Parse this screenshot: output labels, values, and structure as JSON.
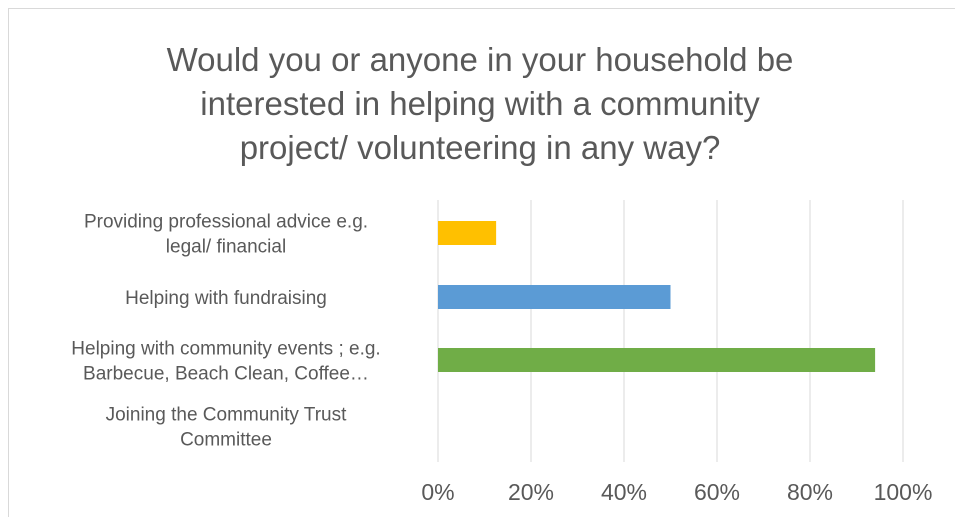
{
  "chart_data": {
    "type": "bar",
    "orientation": "horizontal",
    "title": "Would you or anyone in your household be interested in helping with a community project/ volunteering in any way?",
    "title_lines": [
      "Would you or anyone in your household be",
      "interested in helping with a community",
      "project/ volunteering in any way?"
    ],
    "categories": [
      {
        "lines": [
          "Providing professional advice e.g.",
          "legal/ financial"
        ]
      },
      {
        "lines": [
          "Helping with fundraising"
        ]
      },
      {
        "lines": [
          "Helping with community events ; e.g.",
          "Barbecue, Beach Clean, Coffee…"
        ]
      },
      {
        "lines": [
          "Joining the Community Trust",
          "Committee"
        ]
      }
    ],
    "values": [
      12.5,
      50,
      94,
      0
    ],
    "bar_colors": [
      "#ffc000",
      "#5b9bd5",
      "#70ad47",
      "#a5a5a5"
    ],
    "xlim": [
      0,
      100
    ],
    "ticks": [
      "0%",
      "20%",
      "40%",
      "60%",
      "80%",
      "100%"
    ],
    "grid": true,
    "legend": "none"
  }
}
